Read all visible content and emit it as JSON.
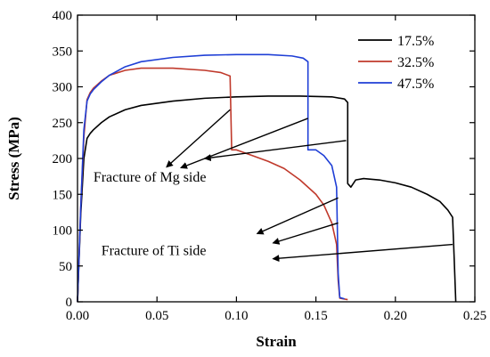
{
  "chart_data": {
    "type": "line",
    "title": "",
    "xlabel": "Strain",
    "ylabel": "Stress (MPa)",
    "xlim": [
      0.0,
      0.25
    ],
    "ylim": [
      0,
      400
    ],
    "xticks": [
      "0.00",
      "0.05",
      "0.10",
      "0.15",
      "0.20",
      "0.25"
    ],
    "yticks": [
      "0",
      "50",
      "100",
      "150",
      "200",
      "250",
      "300",
      "350",
      "400"
    ],
    "grid": false,
    "legend_position": "top-right",
    "series": [
      {
        "name": "17.5%",
        "color": "#000000",
        "x": [
          0.0,
          0.002,
          0.004,
          0.006,
          0.008,
          0.01,
          0.015,
          0.02,
          0.03,
          0.04,
          0.06,
          0.08,
          0.1,
          0.12,
          0.14,
          0.16,
          0.168,
          0.17,
          0.17,
          0.172,
          0.175,
          0.18,
          0.19,
          0.2,
          0.21,
          0.22,
          0.228,
          0.233,
          0.236,
          0.237,
          0.238
        ],
        "y": [
          0,
          120,
          200,
          228,
          235,
          240,
          250,
          258,
          268,
          274,
          280,
          284,
          286,
          287,
          287,
          286,
          283,
          278,
          165,
          160,
          170,
          172,
          170,
          166,
          160,
          150,
          140,
          128,
          118,
          60,
          0
        ]
      },
      {
        "name": "32.5%",
        "color": "#c0392b",
        "x": [
          0.0,
          0.002,
          0.004,
          0.006,
          0.008,
          0.01,
          0.015,
          0.02,
          0.03,
          0.04,
          0.06,
          0.08,
          0.09,
          0.096,
          0.097,
          0.1,
          0.11,
          0.12,
          0.13,
          0.14,
          0.15,
          0.155,
          0.16,
          0.163,
          0.164,
          0.165,
          0.17
        ],
        "y": [
          0,
          130,
          230,
          282,
          292,
          298,
          308,
          316,
          323,
          326,
          326,
          323,
          320,
          315,
          212,
          212,
          204,
          196,
          186,
          170,
          150,
          135,
          110,
          80,
          30,
          5,
          3
        ]
      },
      {
        "name": "47.5%",
        "color": "#1f3fd6",
        "x": [
          0.0,
          0.002,
          0.004,
          0.006,
          0.008,
          0.01,
          0.015,
          0.02,
          0.03,
          0.04,
          0.06,
          0.08,
          0.1,
          0.12,
          0.135,
          0.142,
          0.145,
          0.145,
          0.15,
          0.155,
          0.16,
          0.163,
          0.164,
          0.165,
          0.168
        ],
        "y": [
          0,
          130,
          240,
          280,
          290,
          296,
          307,
          316,
          328,
          335,
          341,
          344,
          345,
          345,
          343,
          340,
          335,
          212,
          212,
          204,
          190,
          160,
          40,
          6,
          4
        ]
      }
    ],
    "annotations": [
      {
        "text": "Fracture of Mg side",
        "label_at": [
          0.01,
          168
        ],
        "arrows": [
          {
            "from": [
              0.096,
              268
            ],
            "to": [
              0.056,
              188
            ]
          },
          {
            "from": [
              0.145,
              256
            ],
            "to": [
              0.065,
              187
            ]
          },
          {
            "from": [
              0.169,
              225
            ],
            "to": [
              0.08,
              200
            ]
          }
        ]
      },
      {
        "text": "Fracture of Ti side",
        "label_at": [
          0.015,
          65
        ],
        "arrows": [
          {
            "from": [
              0.164,
              145
            ],
            "to": [
              0.113,
              95
            ]
          },
          {
            "from": [
              0.164,
              110
            ],
            "to": [
              0.123,
              82
            ]
          },
          {
            "from": [
              0.236,
              80
            ],
            "to": [
              0.123,
              60
            ]
          }
        ]
      }
    ]
  }
}
